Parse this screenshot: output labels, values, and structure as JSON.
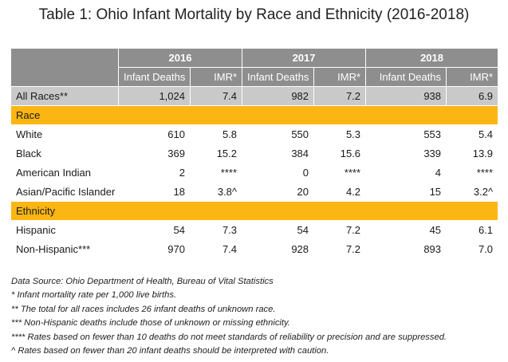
{
  "title": "Table 1: Ohio Infant Mortality by Race and Ethnicity (2016-2018)",
  "table": {
    "years": [
      "2016",
      "2017",
      "2018"
    ],
    "subheaders": [
      "Infant Deaths",
      "IMR*"
    ],
    "all_races": {
      "label": "All Races**",
      "values": [
        "1,024",
        "7.4",
        "982",
        "7.2",
        "938",
        "6.9"
      ]
    },
    "race_section": "Race",
    "race_rows": [
      {
        "label": "White",
        "values": [
          "610",
          "5.8",
          "550",
          "5.3",
          "553",
          "5.4"
        ]
      },
      {
        "label": "Black",
        "values": [
          "369",
          "15.2",
          "384",
          "15.6",
          "339",
          "13.9"
        ]
      },
      {
        "label": "American Indian",
        "values": [
          "2",
          "****",
          "0",
          "****",
          "4",
          "****"
        ]
      },
      {
        "label": "Asian/Pacific Islander",
        "values": [
          "18",
          "3.8^",
          "20",
          "4.2",
          "15",
          "3.2^"
        ]
      }
    ],
    "ethnicity_section": "Ethnicity",
    "ethnicity_rows": [
      {
        "label": "Hispanic",
        "values": [
          "54",
          "7.3",
          "54",
          "7.2",
          "45",
          "6.1"
        ]
      },
      {
        "label": "Non-Hispanic***",
        "values": [
          "970",
          "7.4",
          "928",
          "7.2",
          "893",
          "7.0"
        ]
      }
    ]
  },
  "notes": [
    "Data Source: Ohio Department of Health, Bureau of Vital Statistics",
    "* Infant mortality rate per 1,000 live births.",
    "** The total for all races includes 26 infant deaths of unknown race.",
    "*** Non-Hispanic deaths include those of unknown or missing ethnicity.",
    "**** Rates based on fewer than 10 deaths do not meet standards of reliability or precision and are suppressed.",
    " ^ Rates based on fewer than 20 infant deaths should be interpreted with caution."
  ],
  "colors": {
    "header_gray": "#8e8e8e",
    "all_races_gray": "#c9c9c9",
    "section_gold": "#fcb614"
  }
}
